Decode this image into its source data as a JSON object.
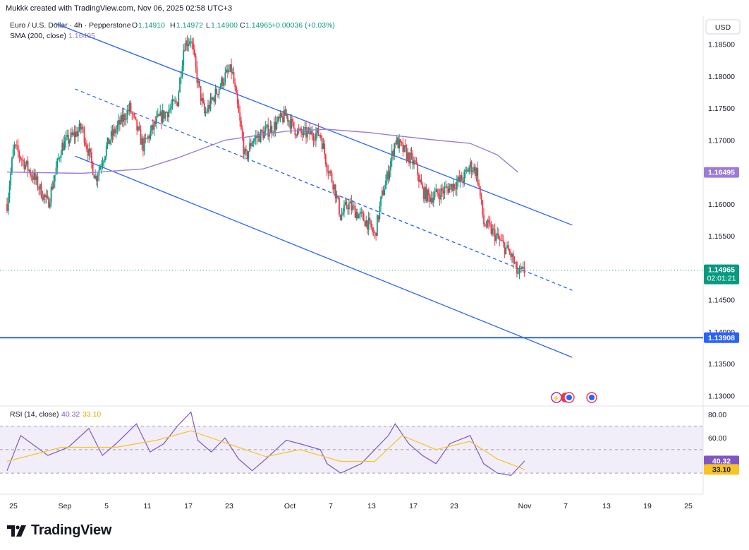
{
  "header": {
    "attribution": "Mukkk created with TradingView.com, Nov 06, 2025 02:58 UTC+3"
  },
  "symbol": {
    "name": "Euro / U.S. Dollar · 4h · Pepperstone",
    "open_label": "O",
    "open": "1.14910",
    "high_label": "H",
    "high": "1.14972",
    "low_label": "L",
    "low": "1.14900",
    "close_label": "C",
    "close": "1.14965",
    "change": "+0.00036 (+0.03%)"
  },
  "sma": {
    "label": "SMA (200, close)",
    "value": "1.16495",
    "color": "#9c7bd8"
  },
  "currency": "USD",
  "price_axis": {
    "ticks": [
      "1.18500",
      "1.18000",
      "1.17500",
      "1.17000",
      "1.16000",
      "1.15500",
      "1.14500",
      "1.14000",
      "1.13500",
      "1.13000"
    ],
    "ylim": [
      1.1285,
      1.1895
    ]
  },
  "badges": {
    "sma_price": "1.16495",
    "last_price": "1.14965",
    "countdown": "02:01:21",
    "support_price": "1.13908",
    "rsi_value": "40.32",
    "rsi_ma_value": "33.10"
  },
  "rsi": {
    "label": "RSI (14, close)",
    "value": "40.32",
    "ma_value": "33.10",
    "ticks": [
      "80.00",
      "60.00"
    ],
    "ylim": [
      15,
      86
    ],
    "upper_band": 70,
    "middle_band": 50,
    "lower_band": 30
  },
  "time_axis": {
    "labels": [
      "25",
      "Sep",
      "5",
      "11",
      "17",
      "23",
      "Oct",
      "7",
      "13",
      "17",
      "23",
      "Nov",
      "7",
      "13",
      "19",
      "25"
    ]
  },
  "brand": "TradingView",
  "colors": {
    "up": "#089981",
    "down": "#f23645",
    "channel": "#2962ff",
    "sma": "#9c7bd8",
    "rsi": "#7e57c2",
    "rsi_ma": "#f7c325",
    "support_line": "#2962ff"
  },
  "chart_data": {
    "type": "candlestick",
    "title": "Euro / U.S. Dollar · 4h · Pepperstone",
    "ylim": [
      1.1285,
      1.1895
    ],
    "support_level": 1.13908,
    "channel": {
      "upper": [
        [
          "Aug 28",
          1.1883
        ],
        [
          "Nov 12",
          1.1567
        ]
      ],
      "middle_dashed": [
        [
          "Aug 31",
          1.178
        ],
        [
          "Nov 12",
          1.1465
        ]
      ],
      "lower": [
        [
          "Aug 31",
          1.1675
        ],
        [
          "Nov 12",
          1.136
        ]
      ]
    },
    "series": [
      {
        "name": "EUR/USD",
        "anchors": [
          [
            "Aug 21",
            1.16
          ],
          [
            "Aug 22",
            1.169
          ],
          [
            "Aug 25",
            1.164
          ],
          [
            "Aug 27",
            1.16
          ],
          [
            "Aug 29",
            1.169
          ],
          [
            "Sep 1",
            1.172
          ],
          [
            "Sep 3",
            1.164
          ],
          [
            "Sep 5",
            1.17
          ],
          [
            "Sep 8",
            1.175
          ],
          [
            "Sep 10",
            1.169
          ],
          [
            "Sep 12",
            1.173
          ],
          [
            "Sep 15",
            1.176
          ],
          [
            "Sep 16",
            1.185
          ],
          [
            "Sep 17",
            1.186
          ],
          [
            "Sep 18",
            1.179
          ],
          [
            "Sep 19",
            1.174
          ],
          [
            "Sep 22",
            1.18
          ],
          [
            "Sep 23",
            1.181
          ],
          [
            "Sep 24",
            1.174
          ],
          [
            "Sep 25",
            1.167
          ],
          [
            "Sep 26",
            1.17
          ],
          [
            "Sep 29",
            1.172
          ],
          [
            "Sep 30",
            1.173
          ],
          [
            "Oct 1",
            1.174
          ],
          [
            "Oct 2",
            1.172
          ],
          [
            "Oct 3",
            1.171
          ],
          [
            "Oct 6",
            1.171
          ],
          [
            "Oct 7",
            1.166
          ],
          [
            "Oct 8",
            1.163
          ],
          [
            "Oct 9",
            1.158
          ],
          [
            "Oct 10",
            1.16
          ],
          [
            "Oct 13",
            1.157
          ],
          [
            "Oct 14",
            1.155
          ],
          [
            "Oct 15",
            1.161
          ],
          [
            "Oct 16",
            1.165
          ],
          [
            "Oct 17",
            1.17
          ],
          [
            "Oct 20",
            1.166
          ],
          [
            "Oct 21",
            1.162
          ],
          [
            "Oct 22",
            1.161
          ],
          [
            "Oct 24",
            1.162
          ],
          [
            "Oct 27",
            1.164
          ],
          [
            "Oct 28",
            1.166
          ],
          [
            "Oct 29",
            1.165
          ],
          [
            "Oct 30",
            1.157
          ],
          [
            "Oct 31",
            1.156
          ],
          [
            "Nov 3",
            1.152
          ],
          [
            "Nov 4",
            1.149
          ],
          [
            "Nov 5",
            1.1495
          ]
        ]
      },
      {
        "name": "SMA (200, close)",
        "points": [
          [
            "Aug 21",
            1.165
          ],
          [
            "Sep 1",
            1.1648
          ],
          [
            "Sep 10",
            1.1655
          ],
          [
            "Sep 15",
            1.1672
          ],
          [
            "Sep 22",
            1.17
          ],
          [
            "Oct 1",
            1.1714
          ],
          [
            "Oct 7",
            1.1717
          ],
          [
            "Oct 13",
            1.1712
          ],
          [
            "Oct 17",
            1.1707
          ],
          [
            "Oct 23",
            1.17
          ],
          [
            "Oct 28",
            1.1695
          ],
          [
            "Nov 1",
            1.1677
          ],
          [
            "Nov 4",
            1.165
          ]
        ]
      },
      {
        "name": "RSI (14, close)",
        "points": [
          [
            "Aug 21",
            32
          ],
          [
            "Aug 23",
            62
          ],
          [
            "Aug 27",
            45
          ],
          [
            "Aug 30",
            52
          ],
          [
            "Sep 2",
            68
          ],
          [
            "Sep 4",
            45
          ],
          [
            "Sep 6",
            55
          ],
          [
            "Sep 9",
            72
          ],
          [
            "Sep 11",
            48
          ],
          [
            "Sep 13",
            55
          ],
          [
            "Sep 15",
            70
          ],
          [
            "Sep 17",
            82
          ],
          [
            "Sep 18",
            58
          ],
          [
            "Sep 20",
            48
          ],
          [
            "Sep 22",
            60
          ],
          [
            "Sep 24",
            42
          ],
          [
            "Sep 26",
            32
          ],
          [
            "Sep 28",
            42
          ],
          [
            "Oct 1",
            58
          ],
          [
            "Oct 3",
            55
          ],
          [
            "Oct 6",
            50
          ],
          [
            "Oct 7",
            38
          ],
          [
            "Oct 9",
            30
          ],
          [
            "Oct 12",
            38
          ],
          [
            "Oct 14",
            50
          ],
          [
            "Oct 16",
            62
          ],
          [
            "Oct 17",
            72
          ],
          [
            "Oct 19",
            55
          ],
          [
            "Oct 21",
            45
          ],
          [
            "Oct 23",
            38
          ],
          [
            "Oct 25",
            55
          ],
          [
            "Oct 28",
            62
          ],
          [
            "Oct 30",
            38
          ],
          [
            "Nov 1",
            30
          ],
          [
            "Nov 3",
            28
          ],
          [
            "Nov 5",
            40.32
          ]
        ]
      },
      {
        "name": "RSI MA",
        "points": [
          [
            "Aug 21",
            40
          ],
          [
            "Aug 29",
            52
          ],
          [
            "Sep 6",
            52
          ],
          [
            "Sep 12",
            58
          ],
          [
            "Sep 17",
            66
          ],
          [
            "Sep 22",
            56
          ],
          [
            "Sep 28",
            44
          ],
          [
            "Oct 3",
            50
          ],
          [
            "Oct 9",
            40
          ],
          [
            "Oct 14",
            40
          ],
          [
            "Oct 18",
            62
          ],
          [
            "Oct 23",
            50
          ],
          [
            "Oct 28",
            57
          ],
          [
            "Nov 1",
            42
          ],
          [
            "Nov 5",
            33.1
          ]
        ]
      }
    ]
  }
}
